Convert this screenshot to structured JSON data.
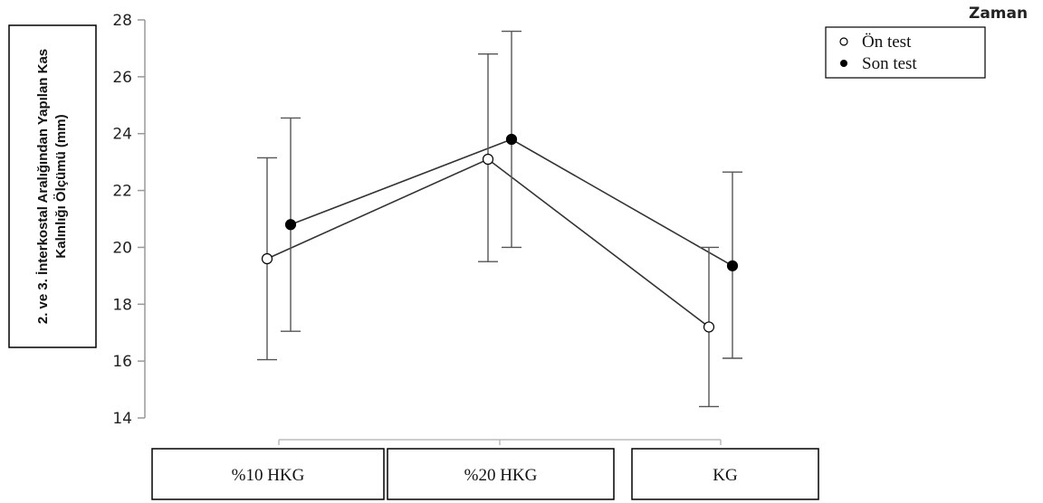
{
  "chart_data": {
    "type": "line",
    "categories": [
      "%10 HKG",
      "%20 HKG",
      "KG"
    ],
    "ylabel_line1": "2. ve 3. İnterkostal Aralığından Yapılan Kas",
    "ylabel_line2": "Kalınlığı Ölçümü (mm)",
    "ylim": [
      14,
      28
    ],
    "yticks": [
      14,
      16,
      18,
      20,
      22,
      24,
      26,
      28
    ],
    "legend_title": "Zaman",
    "legend_position": "top-right",
    "grid": false,
    "error_bars": true,
    "series": [
      {
        "name": "Ön test",
        "marker": "open-circle",
        "values": [
          19.6,
          23.1,
          17.2
        ],
        "error_low": [
          16.05,
          19.5,
          14.4
        ],
        "error_high": [
          23.15,
          26.8,
          20.0
        ]
      },
      {
        "name": "Son test",
        "marker": "filled-circle",
        "values": [
          20.8,
          23.8,
          19.35
        ],
        "error_low": [
          17.05,
          20.0,
          16.1
        ],
        "error_high": [
          24.55,
          27.6,
          22.65
        ]
      }
    ]
  },
  "colors": {
    "line": "#333333",
    "marker_fill_open": "#ffffff",
    "marker_fill_closed": "#000000",
    "axis": "#999999"
  }
}
